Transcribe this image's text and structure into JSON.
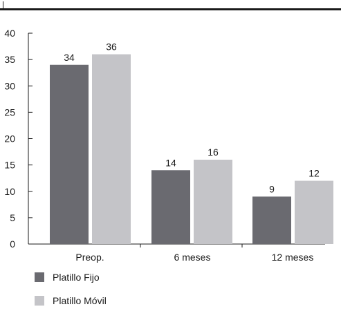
{
  "chart_data": {
    "type": "bar",
    "categories": [
      "Preop.",
      "6 meses",
      "12 meses"
    ],
    "series": [
      {
        "name": "Platillo Fijo",
        "values": [
          34,
          14,
          9
        ],
        "color": "#6a6a70"
      },
      {
        "name": "Platillo Móvil",
        "values": [
          36,
          16,
          12
        ],
        "color": "#c4c4c8"
      }
    ],
    "y_ticks": [
      "0",
      "5",
      "10",
      "15",
      "20",
      "25",
      "30",
      "35",
      "40"
    ],
    "ylim": [
      0,
      40
    ],
    "grid": false,
    "legend_position": "bottom-left"
  }
}
